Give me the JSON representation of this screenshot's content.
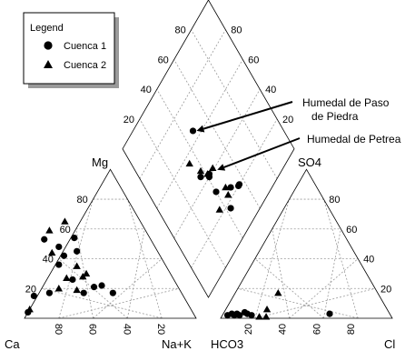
{
  "chart_data": {
    "type": "scatter",
    "subtype": "piper-diagram",
    "title": "",
    "legend": {
      "title": "Legend",
      "placement": "top-left",
      "entries": [
        {
          "label": "Cuenca 1",
          "marker": "circle"
        },
        {
          "label": "Cuenca 2",
          "marker": "triangle"
        }
      ]
    },
    "grid": true,
    "axes": {
      "cation": {
        "bottom_left": "Ca",
        "bottom_right": "Na+K",
        "top": "Mg",
        "ticks_bottom": [
          "80",
          "60",
          "40",
          "20"
        ],
        "ticks_left": [
          "20",
          "40",
          "60",
          "80"
        ]
      },
      "anion": {
        "bottom_left": "HCO3",
        "bottom_right": "Cl",
        "top": "SO4",
        "ticks_bottom": [
          "20",
          "40",
          "60",
          "80"
        ],
        "ticks_right": [
          "20",
          "40",
          "60",
          "80"
        ]
      },
      "diamond": {
        "ticks_left": [
          "20",
          "40",
          "60",
          "80"
        ],
        "ticks_right": [
          "80",
          "60",
          "40",
          "20"
        ]
      }
    },
    "annotations": [
      {
        "text_lines": [
          "Humedal de Paso",
          "de Piedra"
        ],
        "target_series": 0,
        "target_index": 0
      },
      {
        "text_lines": [
          "Humedal de Petrea"
        ],
        "target_series": 1,
        "target_index": 2
      }
    ],
    "series": [
      {
        "name": "Cuenca 1",
        "marker": "circle",
        "cation": [
          {
            "ca": 62,
            "mg": 53
          },
          {
            "ca": 56,
            "mg": 48
          },
          {
            "ca": 56,
            "mg": 42
          },
          {
            "ca": 62,
            "mg": 36
          },
          {
            "ca": 44,
            "mg": 54
          },
          {
            "ca": 47,
            "mg": 45
          },
          {
            "ca": 59,
            "mg": 26
          },
          {
            "ca": 57,
            "mg": 17
          },
          {
            "ca": 49,
            "mg": 21
          },
          {
            "ca": 44,
            "mg": 22
          },
          {
            "ca": 40,
            "mg": 17
          },
          {
            "ca": 87,
            "mg": 15
          },
          {
            "ca": 96,
            "mg": 4
          },
          {
            "ca": 77,
            "mg": 17
          }
        ],
        "anion": [
          {
            "cl": 3,
            "so4": 2
          },
          {
            "cl": 5,
            "so4": 3
          },
          {
            "cl": 7,
            "so4": 2
          },
          {
            "cl": 8,
            "so4": 3
          },
          {
            "cl": 10,
            "so4": 2
          },
          {
            "cl": 12,
            "so4": 4
          },
          {
            "cl": 14,
            "so4": 3
          },
          {
            "cl": 17,
            "so4": 2
          },
          {
            "cl": 62,
            "so4": 3
          }
        ],
        "diamond": [
          {
            "cl_so4": 65,
            "na_k": 47
          },
          {
            "cl_so4": 41,
            "na_k": 42
          },
          {
            "cl_so4": 40,
            "na_k": 41
          },
          {
            "cl_so4": 45,
            "na_k": 36
          },
          {
            "cl_so4": 31,
            "na_k": 40
          },
          {
            "cl_so4": 24,
            "na_k": 50
          },
          {
            "cl_so4": 20,
            "na_k": 55
          },
          {
            "cl_so4": 20,
            "na_k": 56
          },
          {
            "cl_so4": 17,
            "na_k": 43
          }
        ]
      },
      {
        "name": "Cuenca 2",
        "marker": "triangle",
        "cation": [
          {
            "ca": 44,
            "mg": 65
          },
          {
            "ca": 56,
            "mg": 59
          },
          {
            "ca": 62,
            "mg": 44
          },
          {
            "ca": 52,
            "mg": 35
          },
          {
            "ca": 49,
            "mg": 30
          },
          {
            "ca": 62,
            "mg": 27
          },
          {
            "ca": 70,
            "mg": 20
          },
          {
            "ca": 94,
            "mg": 6
          },
          {
            "ca": 60,
            "mg": 19
          },
          {
            "ca": 52,
            "mg": 28
          }
        ],
        "anion": [
          {
            "cl": 25,
            "so4": 17
          },
          {
            "cl": 24,
            "so4": 6
          },
          {
            "cl": 26,
            "so4": 1
          },
          {
            "cl": 22,
            "so4": 1
          }
        ],
        "diamond": [
          {
            "cl_so4": 56,
            "na_k": 34
          },
          {
            "cl_so4": 47,
            "na_k": 38
          },
          {
            "cl_so4": 41,
            "na_k": 46
          },
          {
            "cl_so4": 42,
            "na_k": 41
          },
          {
            "cl_so4": 23,
            "na_k": 36
          },
          {
            "cl_so4": 27,
            "na_k": 47
          },
          {
            "cl_so4": 23,
            "na_k": 46
          }
        ]
      }
    ]
  }
}
